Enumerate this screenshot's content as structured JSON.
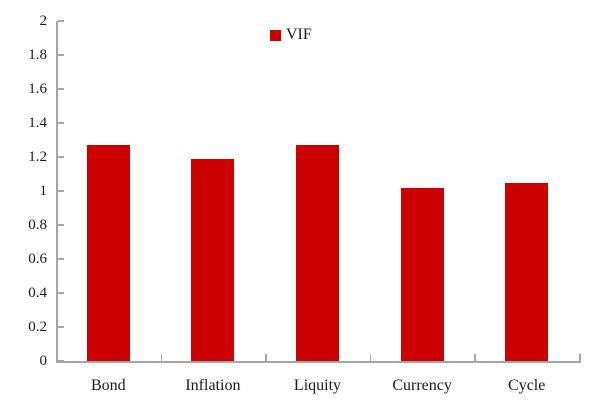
{
  "chart_data": {
    "type": "bar",
    "title": "",
    "categories": [
      "Bond",
      "Inflation",
      "Liquity",
      "Currency",
      "Cycle"
    ],
    "series": [
      {
        "name": "VIF",
        "values": [
          1.27,
          1.19,
          1.27,
          1.02,
          1.05
        ]
      }
    ],
    "xlabel": "",
    "ylabel": "",
    "ylim": [
      0,
      2
    ],
    "ytick_step": 0.2,
    "y_tick_labels": [
      "0",
      "0.2",
      "0.4",
      "0.6",
      "0.8",
      "1",
      "1.2",
      "1.4",
      "1.6",
      "1.8",
      "2"
    ],
    "grid": false,
    "legend": {
      "label": "VIF",
      "position": "top-center"
    },
    "colors": {
      "bar": "#CC0000",
      "axis": "#A6A6A6",
      "text": "#1A1A1A",
      "background": "#FFFFFF"
    }
  }
}
